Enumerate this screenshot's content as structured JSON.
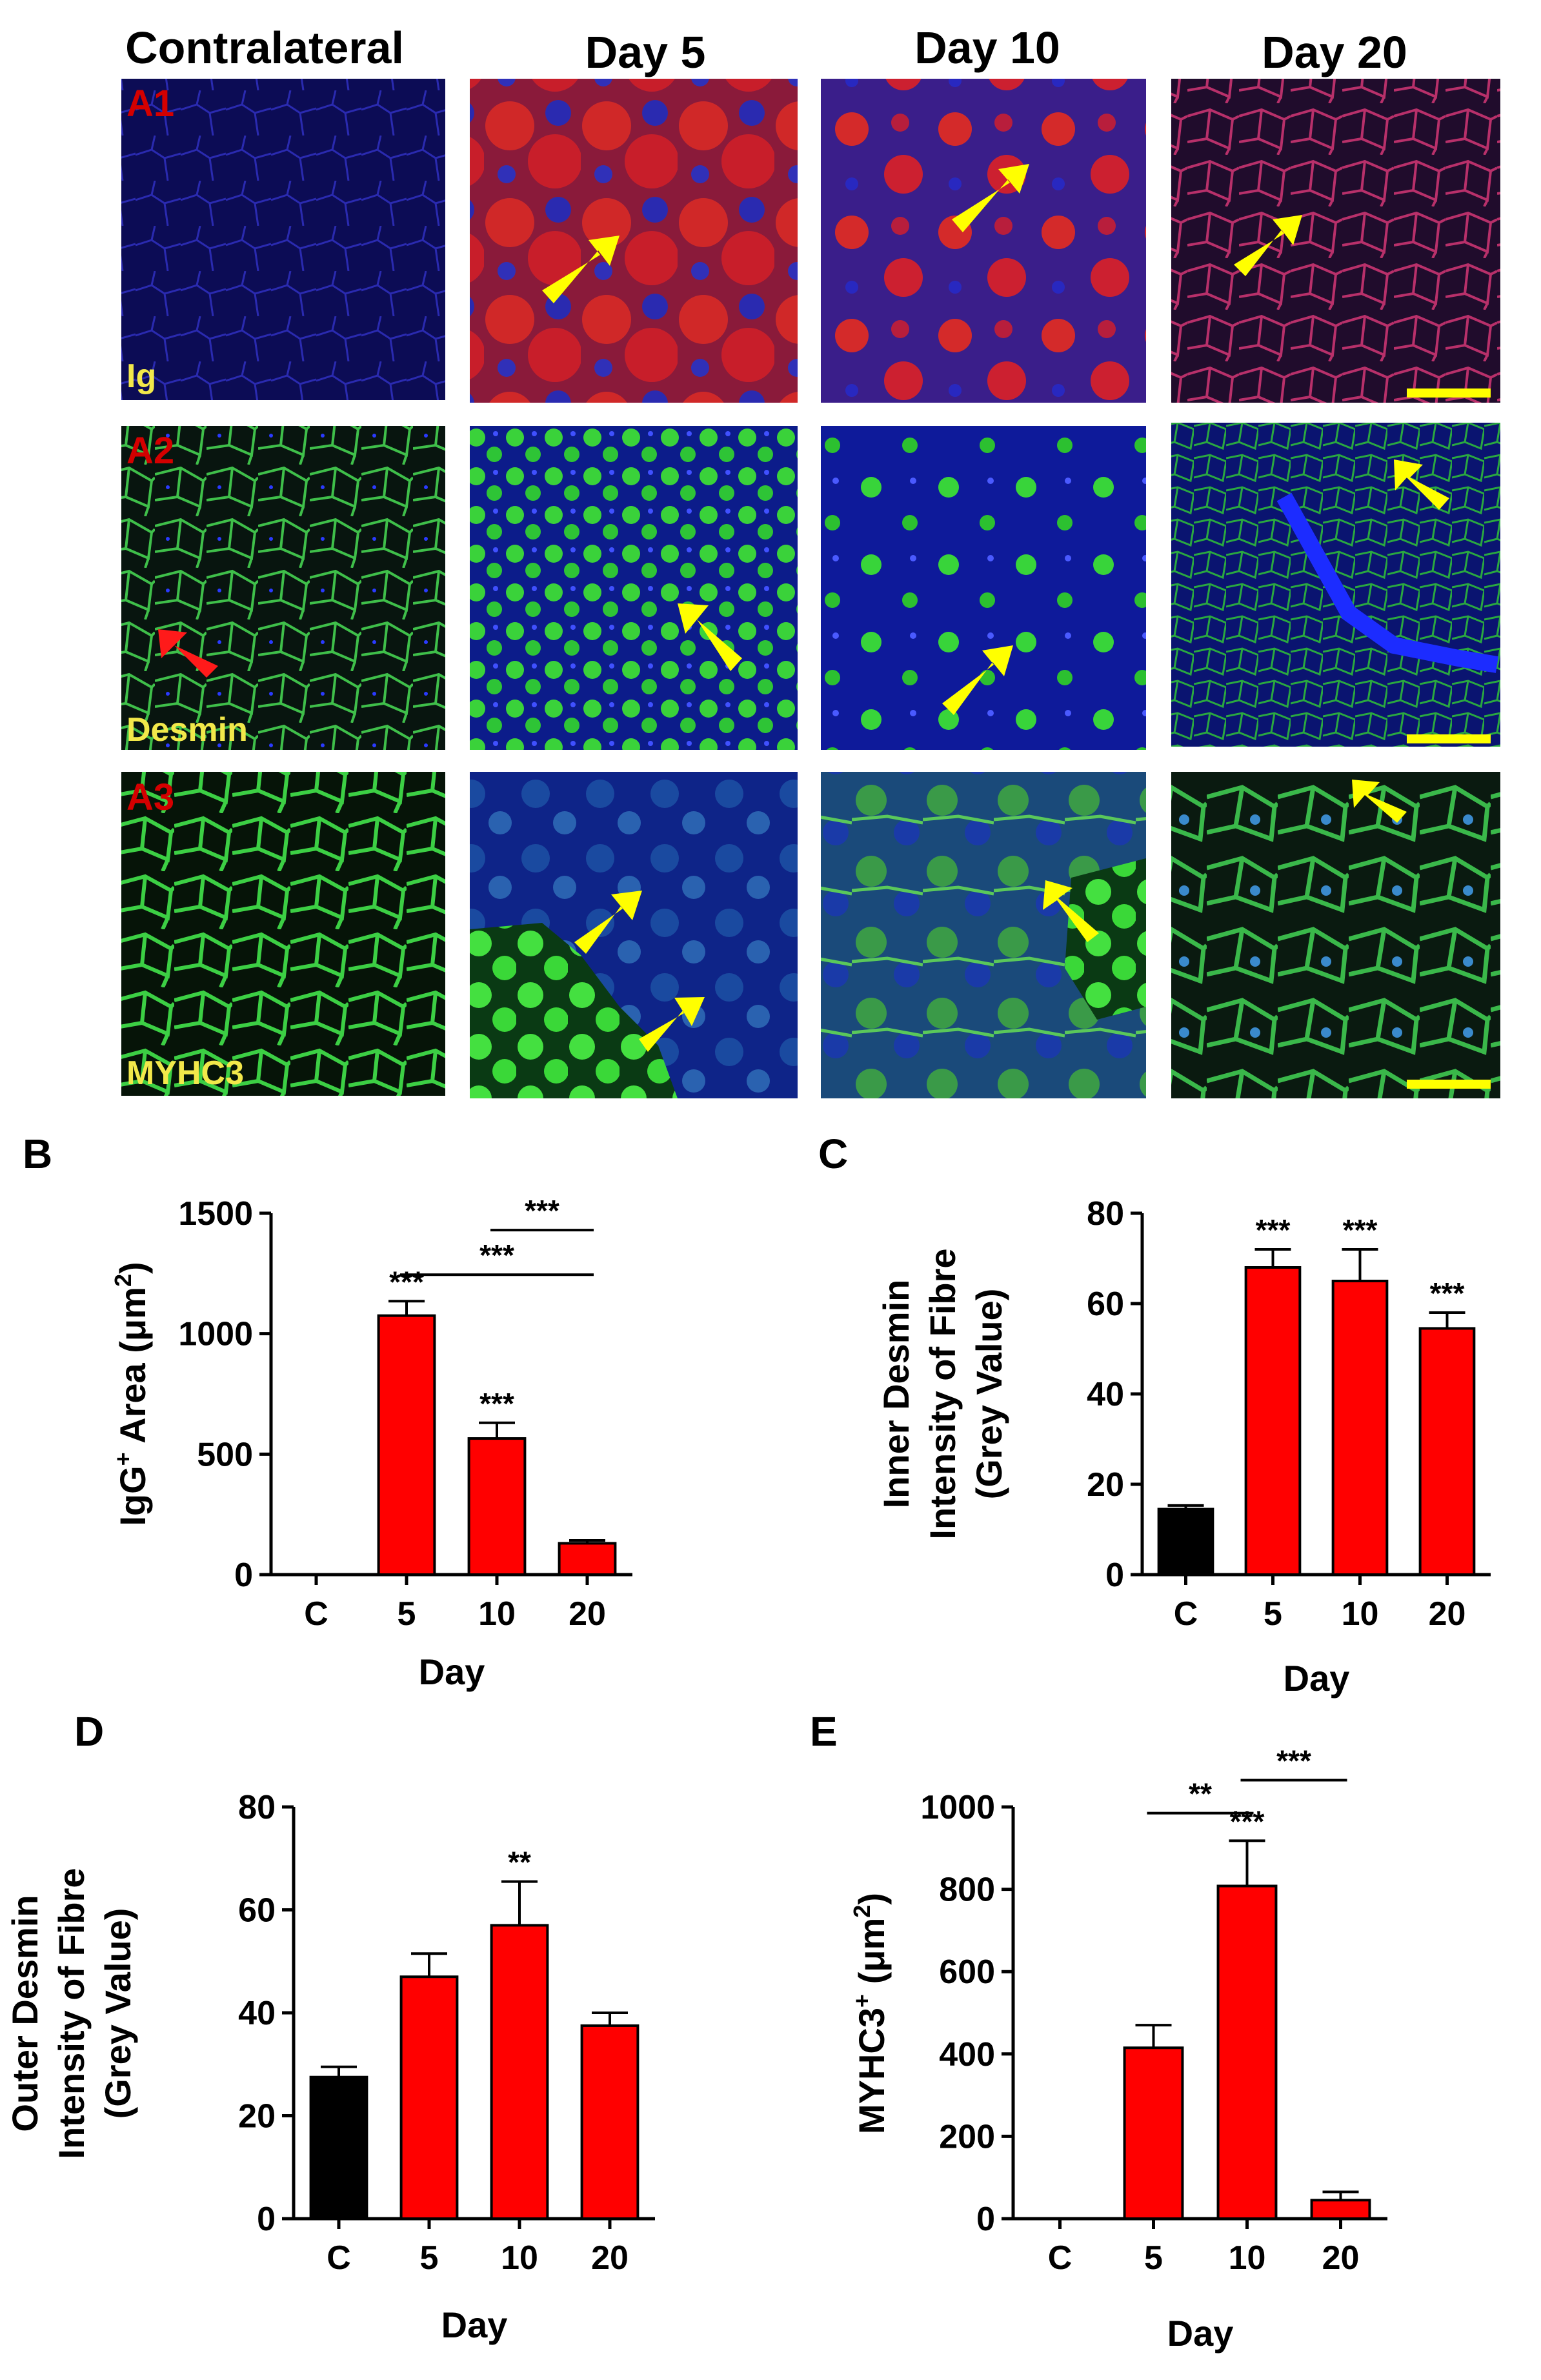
{
  "micrographs": {
    "columns": [
      "Contralateral",
      "Day 5",
      "Day 10",
      "Day 20"
    ],
    "rows": [
      {
        "panel": "A1",
        "stain": "Ig"
      },
      {
        "panel": "A2",
        "stain": "Desmin"
      },
      {
        "panel": "A3",
        "stain": "MYHC3"
      }
    ]
  },
  "colors": {
    "control_bar": "#000000",
    "treated_bar": "#ff0000",
    "yellow_arrow": "#ffff00",
    "red_arrow": "#ff1a1a",
    "scale_bar": "#ffff00"
  },
  "chart_data": [
    {
      "id": "B",
      "type": "bar",
      "panel": "B",
      "categories": [
        "C",
        "5",
        "10",
        "20"
      ],
      "values": [
        0,
        1075,
        565,
        130
      ],
      "errors": [
        0,
        60,
        65,
        12
      ],
      "bar_colors": [
        "#000000",
        "#ff0000",
        "#ff0000",
        "#ff0000"
      ],
      "ylim": [
        0,
        1500
      ],
      "yticks": [
        0,
        500,
        1000,
        1500
      ],
      "ylabel_parts": [
        "IgG",
        "+",
        " Area (μm",
        "2",
        ")"
      ],
      "xlabel": "Day",
      "bar_labels": [
        "",
        "***",
        "***",
        ""
      ],
      "brackets": [
        {
          "from": 2,
          "to": 3,
          "label": "***",
          "value": 1430
        },
        {
          "from": 1,
          "to": 3,
          "label": "***",
          "value": 1245
        }
      ]
    },
    {
      "id": "C",
      "type": "bar",
      "panel": "C",
      "categories": [
        "C",
        "5",
        "10",
        "20"
      ],
      "values": [
        14.5,
        68,
        65,
        54.5
      ],
      "errors": [
        0.8,
        4,
        7,
        3.5
      ],
      "bar_colors": [
        "#000000",
        "#ff0000",
        "#ff0000",
        "#ff0000"
      ],
      "ylim": [
        0,
        80
      ],
      "yticks": [
        0,
        20,
        40,
        60,
        80
      ],
      "ylabel_lines": [
        "Inner Desmin",
        "Intensity of Fibre",
        "(Grey Value)"
      ],
      "xlabel": "Day",
      "bar_labels": [
        "",
        "***",
        "***",
        "***"
      ],
      "brackets": []
    },
    {
      "id": "D",
      "type": "bar",
      "panel": "D",
      "categories": [
        "C",
        "5",
        "10",
        "20"
      ],
      "values": [
        27.5,
        47,
        57,
        37.5
      ],
      "errors": [
        2,
        4.5,
        8.5,
        2.5
      ],
      "bar_colors": [
        "#000000",
        "#ff0000",
        "#ff0000",
        "#ff0000"
      ],
      "ylim": [
        0,
        80
      ],
      "yticks": [
        0,
        20,
        40,
        60,
        80
      ],
      "ylabel_lines": [
        "Outer Desmin",
        "Intensity of Fibre",
        "(Grey Value)"
      ],
      "xlabel": "Day",
      "bar_labels": [
        "",
        "",
        "**",
        ""
      ],
      "brackets": []
    },
    {
      "id": "E",
      "type": "bar",
      "panel": "E",
      "categories": [
        "C",
        "5",
        "10",
        "20"
      ],
      "values": [
        0,
        415,
        808,
        45
      ],
      "errors": [
        0,
        55,
        110,
        20
      ],
      "bar_colors": [
        "#000000",
        "#ff0000",
        "#ff0000",
        "#ff0000"
      ],
      "ylim": [
        0,
        1000
      ],
      "yticks": [
        0,
        200,
        400,
        600,
        800,
        1000
      ],
      "ylabel_parts": [
        "MYHC3",
        "+",
        " (μm",
        "2",
        ")"
      ],
      "xlabel": "Day",
      "bar_labels": [
        "",
        "",
        "***",
        ""
      ],
      "brackets": [
        {
          "from": 1,
          "to": 2,
          "label": "**",
          "value": 985
        },
        {
          "from": 2,
          "to": 3,
          "label": "***",
          "value": 1065
        }
      ]
    }
  ]
}
